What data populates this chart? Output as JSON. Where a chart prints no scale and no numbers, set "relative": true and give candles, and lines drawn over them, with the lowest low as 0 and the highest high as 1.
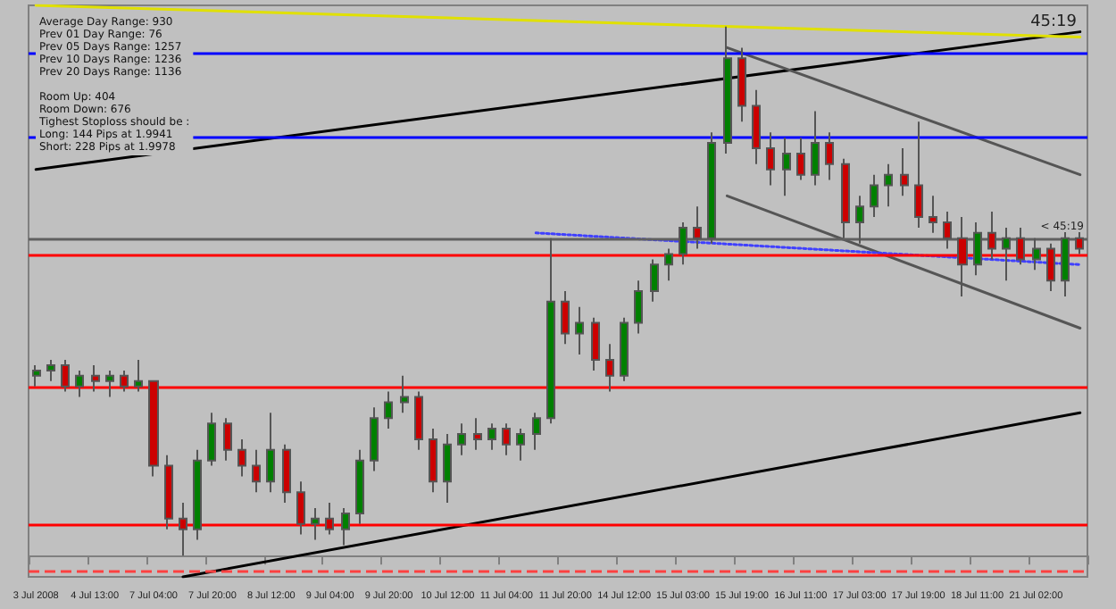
{
  "chart_data": {
    "type": "candlestick",
    "relative": true,
    "grid": false,
    "subtitle": "Average Day Range: 930\nPrev 01 Day Range: 76\nPrev 05 Days Range: 1257\nPrev 10 Days Range: 1236\nPrev 20 Days Range: 1136\n\nRoom Up: 404\nRoom Down: 676\nTighest Stoploss should be :\nLong: 144 Pips at 1.9941\nShort: 228 Pips at 1.9978",
    "annotations": [
      "45:19",
      "< 45:19"
    ],
    "categories": [
      "3 Jul 2008",
      null,
      null,
      null,
      "4 Jul 13:00",
      null,
      null,
      null,
      "7 Jul 04:00",
      null,
      null,
      null,
      "7 Jul 20:00",
      null,
      null,
      null,
      "8 Jul 12:00",
      null,
      null,
      null,
      "9 Jul 04:00",
      null,
      null,
      null,
      "9 Jul 20:00",
      null,
      null,
      null,
      "10 Jul 12:00",
      null,
      null,
      null,
      "11 Jul 04:00",
      null,
      null,
      null,
      "11 Jul 20:00",
      null,
      null,
      null,
      "14 Jul 12:00",
      null,
      null,
      null,
      "15 Jul 03:00",
      null,
      null,
      null,
      "15 Jul 19:00",
      null,
      null,
      null,
      "16 Jul 11:00",
      null,
      null,
      null,
      "17 Jul 03:00",
      null,
      null,
      null,
      "17 Jul 19:00",
      null,
      null,
      null,
      "18 Jul 11:00",
      null,
      null,
      null,
      "21 Jul 02:00",
      null,
      null,
      null
    ],
    "ohlc": [
      [
        0.34,
        0.36,
        0.32,
        0.35
      ],
      [
        0.35,
        0.37,
        0.33,
        0.36
      ],
      [
        0.36,
        0.37,
        0.31,
        0.32
      ],
      [
        0.32,
        0.35,
        0.3,
        0.34
      ],
      [
        0.34,
        0.36,
        0.31,
        0.33
      ],
      [
        0.33,
        0.35,
        0.3,
        0.34
      ],
      [
        0.34,
        0.35,
        0.31,
        0.32
      ],
      [
        0.32,
        0.37,
        0.31,
        0.33
      ],
      [
        0.33,
        0.33,
        0.15,
        0.17
      ],
      [
        0.17,
        0.19,
        0.05,
        0.07
      ],
      [
        0.07,
        0.1,
        0.0,
        0.05
      ],
      [
        0.05,
        0.2,
        0.03,
        0.18
      ],
      [
        0.18,
        0.27,
        0.17,
        0.25
      ],
      [
        0.25,
        0.26,
        0.18,
        0.2
      ],
      [
        0.2,
        0.22,
        0.15,
        0.17
      ],
      [
        0.17,
        0.2,
        0.12,
        0.14
      ],
      [
        0.14,
        0.27,
        0.12,
        0.2
      ],
      [
        0.2,
        0.21,
        0.1,
        0.12
      ],
      [
        0.12,
        0.14,
        0.04,
        0.06
      ],
      [
        0.06,
        0.09,
        0.03,
        0.07
      ],
      [
        0.07,
        0.1,
        0.04,
        0.05
      ],
      [
        0.05,
        0.09,
        0.02,
        0.08
      ],
      [
        0.08,
        0.2,
        0.06,
        0.18
      ],
      [
        0.18,
        0.28,
        0.16,
        0.26
      ],
      [
        0.26,
        0.31,
        0.24,
        0.29
      ],
      [
        0.29,
        0.34,
        0.27,
        0.3
      ],
      [
        0.3,
        0.31,
        0.2,
        0.22
      ],
      [
        0.22,
        0.24,
        0.12,
        0.14
      ],
      [
        0.14,
        0.23,
        0.1,
        0.21
      ],
      [
        0.21,
        0.25,
        0.19,
        0.23
      ],
      [
        0.23,
        0.26,
        0.2,
        0.22
      ],
      [
        0.22,
        0.25,
        0.2,
        0.24
      ],
      [
        0.24,
        0.25,
        0.19,
        0.21
      ],
      [
        0.21,
        0.24,
        0.18,
        0.23
      ],
      [
        0.23,
        0.27,
        0.2,
        0.26
      ],
      [
        0.26,
        0.6,
        0.25,
        0.48
      ],
      [
        0.48,
        0.5,
        0.4,
        0.42
      ],
      [
        0.42,
        0.47,
        0.38,
        0.44
      ],
      [
        0.44,
        0.45,
        0.35,
        0.37
      ],
      [
        0.37,
        0.4,
        0.31,
        0.34
      ],
      [
        0.34,
        0.45,
        0.33,
        0.44
      ],
      [
        0.44,
        0.52,
        0.42,
        0.5
      ],
      [
        0.5,
        0.56,
        0.48,
        0.55
      ],
      [
        0.55,
        0.58,
        0.52,
        0.57
      ],
      [
        0.57,
        0.63,
        0.55,
        0.62
      ],
      [
        0.62,
        0.66,
        0.58,
        0.6
      ],
      [
        0.6,
        0.8,
        0.59,
        0.78
      ],
      [
        0.78,
        1.0,
        0.76,
        0.94
      ],
      [
        0.94,
        0.96,
        0.82,
        0.85
      ],
      [
        0.85,
        0.88,
        0.74,
        0.77
      ],
      [
        0.77,
        0.8,
        0.7,
        0.73
      ],
      [
        0.73,
        0.79,
        0.68,
        0.76
      ],
      [
        0.76,
        0.79,
        0.71,
        0.72
      ],
      [
        0.72,
        0.84,
        0.7,
        0.78
      ],
      [
        0.78,
        0.8,
        0.71,
        0.74
      ],
      [
        0.74,
        0.75,
        0.6,
        0.63
      ],
      [
        0.63,
        0.68,
        0.59,
        0.66
      ],
      [
        0.66,
        0.72,
        0.64,
        0.7
      ],
      [
        0.7,
        0.74,
        0.66,
        0.72
      ],
      [
        0.72,
        0.77,
        0.68,
        0.7
      ],
      [
        0.7,
        0.82,
        0.62,
        0.64
      ],
      [
        0.64,
        0.68,
        0.61,
        0.63
      ],
      [
        0.63,
        0.65,
        0.58,
        0.6
      ],
      [
        0.6,
        0.64,
        0.49,
        0.55
      ],
      [
        0.55,
        0.63,
        0.53,
        0.61
      ],
      [
        0.61,
        0.65,
        0.56,
        0.58
      ],
      [
        0.58,
        0.62,
        0.52,
        0.6
      ],
      [
        0.6,
        0.62,
        0.55,
        0.56
      ],
      [
        0.56,
        0.6,
        0.54,
        0.58
      ],
      [
        0.58,
        0.59,
        0.5,
        0.52
      ],
      [
        0.52,
        0.62,
        0.49,
        0.6
      ],
      [
        0.6,
        0.62,
        0.57,
        0.58
      ]
    ],
    "series": [
      {
        "type": "line",
        "color": "#000000",
        "line_style": "solid",
        "values": [
          0.73,
          null,
          null,
          null,
          null,
          null,
          null,
          null,
          null,
          null,
          null,
          null,
          null,
          null,
          null,
          null,
          null,
          null,
          null,
          null,
          null,
          null,
          null,
          null,
          null,
          null,
          null,
          null,
          null,
          null,
          null,
          null,
          null,
          null,
          null,
          null,
          null,
          null,
          null,
          null,
          null,
          null,
          null,
          null,
          null,
          null,
          null,
          null,
          null,
          null,
          null,
          null,
          null,
          null,
          null,
          null,
          null,
          null,
          null,
          null,
          null,
          null,
          null,
          null,
          null,
          null,
          null,
          null,
          null,
          null,
          null,
          0.99
        ]
      },
      {
        "type": "line",
        "color": "#000000",
        "line_style": "solid",
        "values": [
          null,
          null,
          null,
          null,
          null,
          null,
          null,
          null,
          null,
          null,
          -0.04,
          null,
          null,
          null,
          null,
          null,
          null,
          null,
          null,
          null,
          null,
          null,
          null,
          null,
          null,
          null,
          null,
          null,
          null,
          null,
          null,
          null,
          null,
          null,
          null,
          null,
          null,
          null,
          null,
          null,
          null,
          null,
          null,
          null,
          null,
          null,
          null,
          null,
          null,
          null,
          null,
          null,
          null,
          null,
          null,
          null,
          null,
          null,
          null,
          null,
          null,
          null,
          null,
          null,
          null,
          null,
          null,
          null,
          null,
          null,
          null,
          0.27
        ]
      },
      {
        "type": "line",
        "color": "#e0e000",
        "line_style": "solid",
        "values": [
          1.04,
          null,
          null,
          null,
          null,
          null,
          null,
          null,
          null,
          null,
          null,
          null,
          null,
          null,
          null,
          null,
          null,
          null,
          null,
          null,
          null,
          null,
          null,
          null,
          null,
          null,
          null,
          null,
          null,
          null,
          null,
          null,
          null,
          null,
          null,
          null,
          null,
          null,
          null,
          null,
          null,
          null,
          null,
          null,
          null,
          null,
          null,
          null,
          null,
          null,
          null,
          null,
          null,
          null,
          null,
          null,
          null,
          null,
          null,
          null,
          null,
          null,
          null,
          null,
          null,
          null,
          null,
          null,
          null,
          null,
          null,
          0.98
        ]
      },
      {
        "type": "line",
        "color": "#555555",
        "line_style": "solid",
        "values": [
          null,
          null,
          null,
          null,
          null,
          null,
          null,
          null,
          null,
          null,
          null,
          null,
          null,
          null,
          null,
          null,
          null,
          null,
          null,
          null,
          null,
          null,
          null,
          null,
          null,
          null,
          null,
          null,
          null,
          null,
          null,
          null,
          null,
          null,
          null,
          null,
          null,
          null,
          null,
          null,
          null,
          null,
          null,
          null,
          null,
          null,
          null,
          0.96,
          null,
          null,
          null,
          null,
          null,
          null,
          null,
          null,
          null,
          null,
          null,
          null,
          null,
          null,
          null,
          null,
          null,
          null,
          null,
          null,
          null,
          null,
          null,
          0.72
        ]
      },
      {
        "type": "line",
        "color": "#555555",
        "line_style": "solid",
        "values": [
          null,
          null,
          null,
          null,
          null,
          null,
          null,
          null,
          null,
          null,
          null,
          null,
          null,
          null,
          null,
          null,
          null,
          null,
          null,
          null,
          null,
          null,
          null,
          null,
          null,
          null,
          null,
          null,
          null,
          null,
          null,
          null,
          null,
          null,
          null,
          null,
          null,
          null,
          null,
          null,
          null,
          null,
          null,
          null,
          null,
          null,
          null,
          0.68,
          null,
          null,
          null,
          null,
          null,
          null,
          null,
          null,
          null,
          null,
          null,
          null,
          null,
          null,
          null,
          null,
          null,
          null,
          null,
          null,
          null,
          null,
          null,
          0.43
        ]
      },
      {
        "type": "line",
        "color": "#4040ff",
        "line_style": "dotted",
        "values": [
          null,
          null,
          null,
          null,
          null,
          null,
          null,
          null,
          null,
          null,
          null,
          null,
          null,
          null,
          null,
          null,
          null,
          null,
          null,
          null,
          null,
          null,
          null,
          null,
          null,
          null,
          null,
          null,
          null,
          null,
          null,
          null,
          null,
          null,
          0.61,
          null,
          null,
          null,
          null,
          null,
          null,
          null,
          null,
          null,
          null,
          null,
          null,
          null,
          null,
          null,
          null,
          null,
          null,
          null,
          null,
          null,
          null,
          null,
          null,
          null,
          null,
          null,
          null,
          null,
          null,
          null,
          null,
          null,
          null,
          null,
          null,
          0.55
        ]
      }
    ],
    "ref_lines": [
      {
        "axis": "y",
        "value": 0.95,
        "color": "#0000ff",
        "line_style": "solid"
      },
      {
        "axis": "y",
        "value": 0.79,
        "color": "#0000ff",
        "line_style": "solid"
      },
      {
        "axis": "y",
        "value": 0.6,
        "color": "#606060",
        "line_style": "solid"
      },
      {
        "axis": "y",
        "value": 0.57,
        "color": "#ff0000",
        "line_style": "solid"
      },
      {
        "axis": "y",
        "value": 0.32,
        "color": "#ff0000",
        "line_style": "solid"
      },
      {
        "axis": "y",
        "value": 0.06,
        "color": "#ff0000",
        "line_style": "solid"
      },
      {
        "axis": "y",
        "value": -0.03,
        "color": "#ff4040",
        "line_style": "dashed"
      }
    ]
  }
}
